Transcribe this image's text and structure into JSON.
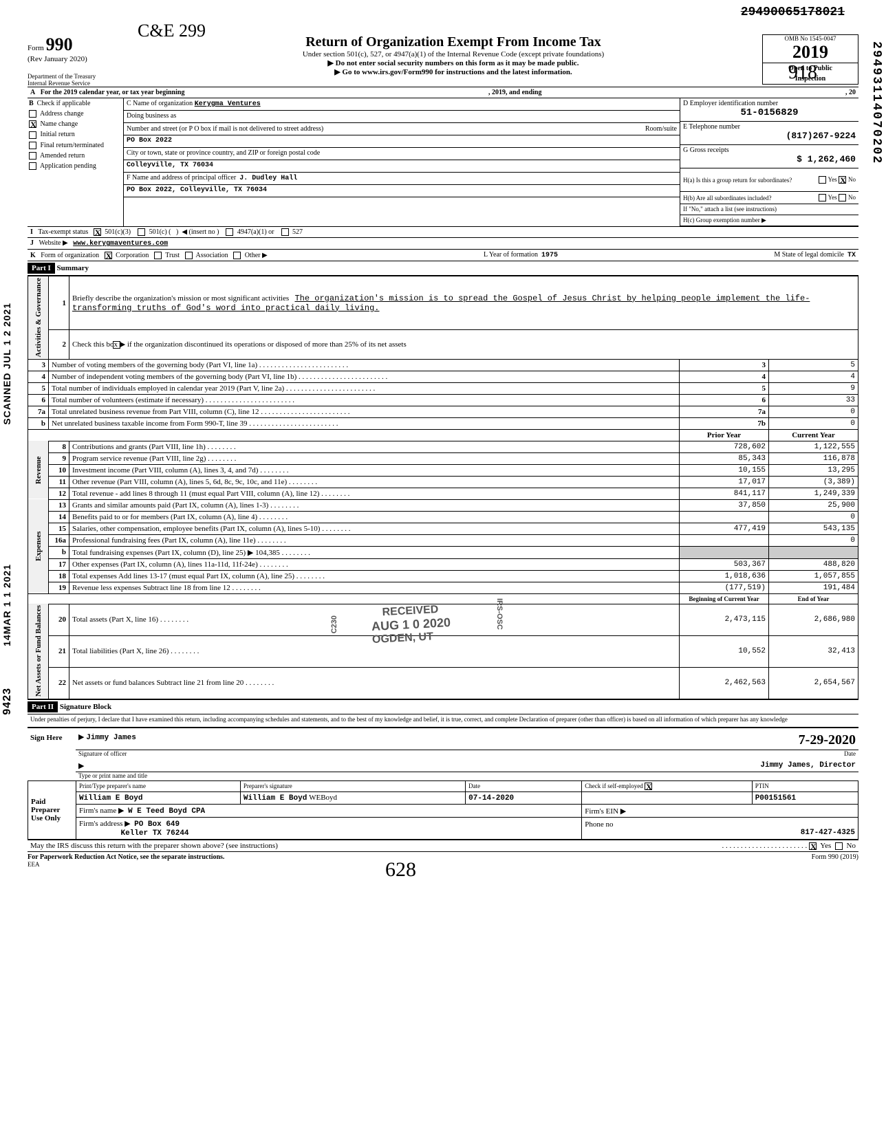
{
  "top_id_struck": "29490065178021",
  "vertical_right": "29493114070202",
  "vertical_left_1": "SCANNED JUL 1 2 2021",
  "vertical_left_2": "14MAR 1 1 2021",
  "vertical_left_3": "9423",
  "form": {
    "label": "Form",
    "number": "990",
    "rev": "(Rev January 2020)",
    "dept1": "Department of the Treasury",
    "dept2": "Internal Revenue Service"
  },
  "handwritten_top": "C&E 299",
  "title": "Return of Organization Exempt From Income Tax",
  "subtitle1": "Under section 501(c), 527, or 4947(a)(1) of the Internal Revenue Code (except private foundations)",
  "subtitle2": "▶ Do not enter social security numbers on this form as it may be made public.",
  "subtitle3": "▶ Go to www.irs.gov/Form990 for instructions and the latest information.",
  "omb": "OMB No 1545-0047",
  "year": "2019",
  "open1": "Open to Public",
  "open2": "Inspection",
  "line_A": "For the 2019 calendar year, or tax year beginning",
  "line_A_mid": ", 2019, and ending",
  "line_A_end": ", 20",
  "B": {
    "header": "Check if applicable",
    "items": [
      "Address change",
      "Name change",
      "Initial return",
      "Final return/terminated",
      "Amended return",
      "Application pending"
    ],
    "checked_index": 1
  },
  "C": {
    "name_lbl": "C  Name of organization",
    "name": "Kerygma Ventures",
    "dba_lbl": "Doing business as",
    "street_lbl": "Number and street (or P O  box if mail is not delivered to street address)",
    "room_lbl": "Room/suite",
    "street": "PO Box 2022",
    "city_lbl": "City or town, state or province  country, and ZIP or foreign postal code",
    "city": "Colleyville, TX 76034",
    "F_lbl": "F  Name and address of principal officer",
    "F_name": "J. Dudley Hall",
    "F_addr": "PO Box 2022, Colleyville, TX 76034"
  },
  "D_lbl": "D   Employer identification number",
  "D_val": "51-0156829",
  "E_lbl": "E   Telephone number",
  "E_val": "(817)267-9224",
  "G_lbl": "G   Gross receipts",
  "G_val": "$               1,262,460",
  "H_a": "H(a) Is this a group return for subordinates?",
  "H_a_yes": "Yes",
  "H_a_no": "No",
  "H_a_checked": "no",
  "H_b": "H(b) Are all subordinates included?",
  "H_b_yes": "Yes",
  "H_b_no": "No",
  "H_b_note": "If \"No,\" attach a list (see instructions)",
  "H_c": "H(c)   Group exemption number ▶",
  "I_lbl": "Tax-exempt status",
  "I_opts": [
    "501(c)(3)",
    "501(c) (",
    "◀ (insert no )",
    "4947(a)(1) or",
    "527"
  ],
  "I_checked": 0,
  "J_lbl": "Website ▶",
  "J_val": "www.kerygmaventures.com",
  "K_lbl": "Form of organization",
  "K_opts": [
    "Corporation",
    "Trust",
    "Association",
    "Other ▶"
  ],
  "K_checked": 0,
  "L_lbl": "L  Year of formation",
  "L_val": "1975",
  "M_lbl": "M   State of legal domicile",
  "M_val": "TX",
  "part1_hdr": "Part I",
  "part1_title": "Summary",
  "line1_lbl": "Briefly describe the organization's mission or most significant activities",
  "mission": "The organization's mission is to spread the Gospel of Jesus Christ by helping people implement the life-transforming truths of God's word into practical daily living.",
  "line2": "Check this box ▶       if the organization discontinued its operations or disposed of more than 25% of its net assets",
  "rows_gov": [
    {
      "n": "3",
      "d": "Number of voting members of the governing body (Part VI, line 1a)",
      "c": "3",
      "v": "5"
    },
    {
      "n": "4",
      "d": "Number of independent voting members of the governing body (Part VI, line 1b)",
      "c": "4",
      "v": "4"
    },
    {
      "n": "5",
      "d": "Total number of individuals employed in calendar year 2019 (Part V, line 2a)",
      "c": "5",
      "v": "9"
    },
    {
      "n": "6",
      "d": "Total number of volunteers (estimate if necessary)",
      "c": "6",
      "v": "33"
    },
    {
      "n": "7a",
      "d": "Total unrelated business revenue from Part VIII, column (C), line 12",
      "c": "7a",
      "v": "0"
    },
    {
      "n": "b",
      "d": "Net unrelated business taxable income from Form 990-T, line 39",
      "c": "7b",
      "v": "0"
    }
  ],
  "col_headers": [
    "Prior Year",
    "Current Year"
  ],
  "rows_rev": [
    {
      "n": "8",
      "d": "Contributions and grants (Part VIII, line 1h)",
      "p": "728,602",
      "c": "1,122,555"
    },
    {
      "n": "9",
      "d": "Program service revenue (Part VIII, line 2g)",
      "p": "85,343",
      "c": "116,878"
    },
    {
      "n": "10",
      "d": "Investment income (Part VIII, column (A), lines 3, 4, and 7d)",
      "p": "10,155",
      "c": "13,295"
    },
    {
      "n": "11",
      "d": "Other revenue (Part VIII, column (A), lines 5, 6d, 8c, 9c, 10c, and 11e)",
      "p": "17,017",
      "c": "(3,389)"
    },
    {
      "n": "12",
      "d": "Total revenue - add lines 8 through 11 (must equal Part VIII, column (A), line 12)",
      "p": "841,117",
      "c": "1,249,339"
    }
  ],
  "rows_exp": [
    {
      "n": "13",
      "d": "Grants and similar amounts paid (Part IX, column (A), lines 1-3)",
      "p": "37,850",
      "c": "25,900"
    },
    {
      "n": "14",
      "d": "Benefits paid to or for members (Part IX, column (A), line 4)",
      "p": "",
      "c": "0"
    },
    {
      "n": "15",
      "d": "Salaries, other compensation, employee benefits (Part IX, column (A), lines 5-10)",
      "p": "477,419",
      "c": "543,135"
    },
    {
      "n": "16a",
      "d": "Professional fundraising fees (Part IX, column (A), line 11e)",
      "p": "",
      "c": "0"
    },
    {
      "n": "b",
      "d": "Total fundraising expenses (Part IX, column (D), line 25)   ▶            104,385",
      "p": "—shade—",
      "c": "—shade—"
    },
    {
      "n": "17",
      "d": "Other expenses (Part IX, column (A), lines 11a-11d, 11f-24e)",
      "p": "503,367",
      "c": "488,820"
    },
    {
      "n": "18",
      "d": "Total expenses  Add lines 13-17 (must equal Part IX, column (A), line 25)",
      "p": "1,018,636",
      "c": "1,057,855"
    },
    {
      "n": "19",
      "d": "Revenue less expenses  Subtract line 18 from line 12",
      "p": "(177,519)",
      "c": "191,484"
    }
  ],
  "col_headers2": [
    "Beginning of Current Year",
    "End of Year"
  ],
  "rows_na": [
    {
      "n": "20",
      "d": "Total assets (Part X, line 16)",
      "p": "2,473,115",
      "c": "2,686,980"
    },
    {
      "n": "21",
      "d": "Total liabilities (Part X, line 26)",
      "p": "10,552",
      "c": "32,413"
    },
    {
      "n": "22",
      "d": "Net assets or fund balances  Subtract line 21 from line 20",
      "p": "2,462,563",
      "c": "2,654,567"
    }
  ],
  "vert_labels": {
    "gov": "Activities & Governance",
    "rev": "Revenue",
    "exp": "Expenses",
    "na": "Net Assets or\nFund Balances"
  },
  "part2_hdr": "Part II",
  "part2_title": "Signature Block",
  "penalty": "Under penalties of perjury, I declare that I have examined this return, including accompanying schedules and statements, and to the best of my knowledge and belief, it is true, correct, and complete  Declaration of preparer (other than officer) is based on all information of which preparer has any knowledge",
  "sign_here": "Sign Here",
  "sig_name": "Jimmy James",
  "sig_name_lbl": "Signature of officer",
  "sig_date": "7-29-2020",
  "sig_date_lbl": "Date",
  "sig_title": "Jimmy James, Director",
  "sig_title_lbl": "Type or print name and title",
  "paid": "Paid Preparer Use Only",
  "prep_name_lbl": "Print/Type preparer's name",
  "prep_name": "William E Boyd",
  "prep_sig_lbl": "Preparer's signature",
  "prep_sig": "William E Boyd",
  "prep_date_lbl": "Date",
  "prep_date": "07-14-2020",
  "prep_check_lbl": "Check          if self-employed",
  "prep_check": true,
  "ptin_lbl": "PTIN",
  "ptin": "P00151561",
  "firm_name_lbl": "Firm's name    ▶",
  "firm_name": "W E Teed Boyd CPA",
  "firm_ein_lbl": "Firm's EIN  ▶",
  "firm_addr_lbl": "Firm's address ▶",
  "firm_addr1": "PO Box 649",
  "firm_addr2": "Keller TX 76244",
  "phone_lbl": "Phone no",
  "phone": "817-427-4325",
  "discuss": "May the IRS discuss this return with the preparer shown above? (see instructions)",
  "discuss_yes": "Yes",
  "discuss_no": "No",
  "discuss_checked": "yes",
  "paperwork": "For Paperwork Reduction Act Notice, see the separate instructions.",
  "eea": "EEA",
  "form_footer": "Form 990 (2019)",
  "stamps": {
    "received": "RECEIVED",
    "date": "AUG 1 0 2020",
    "ogden": "OGDEN, UT",
    "c230": "C230",
    "irs_osc": "IRS-OSC"
  },
  "bottom_hand": "628",
  "top_hand_right": "918"
}
